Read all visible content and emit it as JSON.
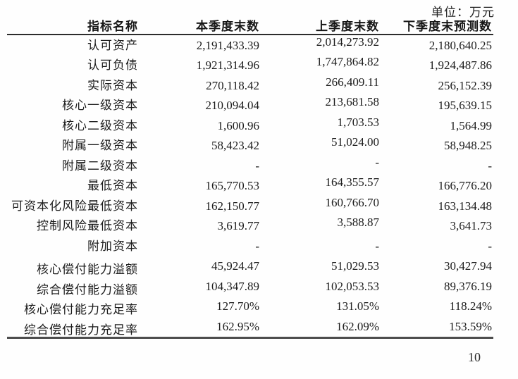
{
  "page": {
    "unit_label": "单位：万元",
    "page_number": "10"
  },
  "table": {
    "columns": [
      "指标名称",
      "本季度末数",
      "上季度末数",
      "下季度末预测数"
    ],
    "rows": [
      {
        "name": "认可资产",
        "current": "2,191,433.39",
        "previous": "2,014,273.92",
        "forecast": "2,180,640.25"
      },
      {
        "name": "认可负债",
        "current": "1,921,314.96",
        "previous": "1,747,864.82",
        "forecast": "1,924,487.86"
      },
      {
        "name": "实际资本",
        "current": "270,118.42",
        "previous": "266,409.11",
        "forecast": "256,152.39"
      },
      {
        "name": "核心一级资本",
        "current": "210,094.04",
        "previous": "213,681.58",
        "forecast": "195,639.15"
      },
      {
        "name": "核心二级资本",
        "current": "1,600.96",
        "previous": "1,703.53",
        "forecast": "1,564.99"
      },
      {
        "name": "附属一级资本",
        "current": "58,423.42",
        "previous": "51,024.00",
        "forecast": "58,948.25"
      },
      {
        "name": "附属二级资本",
        "current": "-",
        "previous": "-",
        "forecast": "-"
      },
      {
        "name": "最低资本",
        "current": "165,770.53",
        "previous": "164,355.57",
        "forecast": "166,776.20"
      },
      {
        "name": "可资本化风险最低资本",
        "current": "162,150.77",
        "previous": "160,766.70",
        "forecast": "163,134.48"
      },
      {
        "name": "控制风险最低资本",
        "current": "3,619.77",
        "previous": "3,588.87",
        "forecast": "3,641.73"
      },
      {
        "name": "附加资本",
        "current": "-",
        "previous": "-",
        "forecast": "-"
      },
      {
        "name": "核心偿付能力溢额",
        "current": "45,924.47",
        "previous": "51,029.53",
        "forecast": "30,427.94"
      },
      {
        "name": "综合偿付能力溢额",
        "current": "104,347.89",
        "previous": "102,053.53",
        "forecast": "89,376.19"
      },
      {
        "name": "核心偿付能力充足率",
        "current": "127.70%",
        "previous": "131.05%",
        "forecast": "118.24%"
      },
      {
        "name": "综合偿付能力充足率",
        "current": "162.95%",
        "previous": "162.09%",
        "forecast": "153.59%"
      }
    ]
  }
}
